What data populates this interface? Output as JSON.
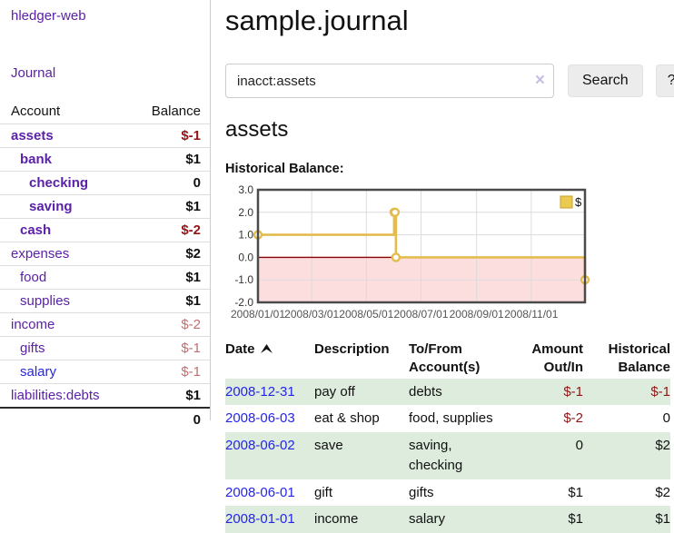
{
  "colors": {
    "link_purple": "#5b21a8",
    "link_blue": "#2525e8",
    "negative_dark_red": "#941414",
    "negative_light_red": "#bf6f6f",
    "row_stripe_green": "#deecde",
    "chart_gold": "#e4bc4e"
  },
  "sidebar": {
    "brand": "hledger-web",
    "nav_journal": "Journal",
    "accounts_header": {
      "account": "Account",
      "balance": "Balance"
    },
    "accounts": [
      {
        "name": "assets",
        "indent": 0,
        "bold": true,
        "link_color": "purple",
        "balance": "$-1",
        "balance_class": "neg-bold"
      },
      {
        "name": "bank",
        "indent": 1,
        "bold": true,
        "link_color": "purple",
        "balance": "$1",
        "balance_class": "pos-bold"
      },
      {
        "name": "checking",
        "indent": 2,
        "bold": true,
        "link_color": "purple",
        "balance": "0",
        "balance_class": "pos-bold"
      },
      {
        "name": "saving",
        "indent": 2,
        "bold": true,
        "link_color": "purple",
        "balance": "$1",
        "balance_class": "pos-bold"
      },
      {
        "name": "cash",
        "indent": 1,
        "bold": true,
        "link_color": "purple",
        "balance": "$-2",
        "balance_class": "neg-bold"
      },
      {
        "name": "expenses",
        "indent": 0,
        "bold": false,
        "link_color": "purple",
        "balance": "$2",
        "balance_class": "pos-bold"
      },
      {
        "name": "food",
        "indent": 1,
        "bold": false,
        "link_color": "purple",
        "balance": "$1",
        "balance_class": "pos-bold"
      },
      {
        "name": "supplies",
        "indent": 1,
        "bold": false,
        "link_color": "purple",
        "balance": "$1",
        "balance_class": "pos-bold"
      },
      {
        "name": "income",
        "indent": 0,
        "bold": false,
        "link_color": "purple",
        "balance": "$-2",
        "balance_class": "neg-light"
      },
      {
        "name": "gifts",
        "indent": 1,
        "bold": false,
        "link_color": "purple",
        "balance": "$-1",
        "balance_class": "neg-light"
      },
      {
        "name": "salary",
        "indent": 1,
        "bold": false,
        "link_color": "blue",
        "balance": "$-1",
        "balance_class": "neg-light"
      },
      {
        "name": "liabilities:debts",
        "indent": 0,
        "bold": false,
        "link_color": "purple",
        "balance": "$1",
        "balance_class": "pos-bold"
      }
    ],
    "total": "0"
  },
  "main": {
    "title": "sample.journal",
    "search": {
      "value": "inacct:assets",
      "clear_icon": "×",
      "button_label": "Search",
      "help_label": "?"
    },
    "account_heading": "assets"
  },
  "chart_data": {
    "type": "line",
    "title": "Historical Balance:",
    "x_range": [
      "2008-01-01",
      "2008-12-31"
    ],
    "ylim": [
      -2,
      3
    ],
    "y_ticks": [
      3,
      2,
      1,
      0,
      -1,
      -2
    ],
    "y_tick_labels": [
      "3.0",
      "2.0",
      "1.0",
      "0.0",
      "-1.0",
      "-2.0"
    ],
    "x_ticks": [
      {
        "date": "2008-01-01",
        "label": "2008/01/01"
      },
      {
        "date": "2008-03-01",
        "label": "2008/03/01"
      },
      {
        "date": "2008-05-01",
        "label": "2008/05/01"
      },
      {
        "date": "2008-07-01",
        "label": "2008/07/01"
      },
      {
        "date": "2008-09-01",
        "label": "2008/09/01"
      },
      {
        "date": "2008-11-01",
        "label": "2008/11/01"
      }
    ],
    "grid": true,
    "legend": {
      "label": "$",
      "position": "top-right"
    },
    "series": [
      {
        "name": "$",
        "style": "step-line",
        "color": "#e4bc4e",
        "marker": "circle",
        "points": [
          [
            "2008-01-01",
            1
          ],
          [
            "2008-06-01",
            2
          ],
          [
            "2008-06-02",
            2
          ],
          [
            "2008-06-03",
            0
          ],
          [
            "2008-12-31",
            -1
          ]
        ]
      }
    ],
    "negative_region_fill": "#fcdede",
    "zero_line_color": "#8b0000",
    "border_color": "#4a4a4a",
    "grid_color": "#dcdcdc",
    "tick_label_color": "#555555"
  },
  "transactions": {
    "headers": {
      "date": "Date",
      "description": "Description",
      "accounts": "To/From Account(s)",
      "amount": "Amount Out/In",
      "balance": "Historical Balance"
    },
    "rows": [
      {
        "date": "2008-12-31",
        "description": "pay off",
        "accounts": "debts",
        "amount": "$-1",
        "amount_negative": true,
        "balance": "$-1",
        "balance_negative": true
      },
      {
        "date": "2008-06-03",
        "description": "eat & shop",
        "accounts": "food, supplies",
        "amount": "$-2",
        "amount_negative": true,
        "balance": "0",
        "balance_negative": false
      },
      {
        "date": "2008-06-02",
        "description": "save",
        "accounts": "saving, checking",
        "amount": "0",
        "amount_negative": false,
        "balance": "$2",
        "balance_negative": false
      },
      {
        "date": "2008-06-01",
        "description": "gift",
        "accounts": "gifts",
        "amount": "$1",
        "amount_negative": false,
        "balance": "$2",
        "balance_negative": false
      },
      {
        "date": "2008-01-01",
        "description": "income",
        "accounts": "salary",
        "amount": "$1",
        "amount_negative": false,
        "balance": "$1",
        "balance_negative": false
      }
    ]
  }
}
